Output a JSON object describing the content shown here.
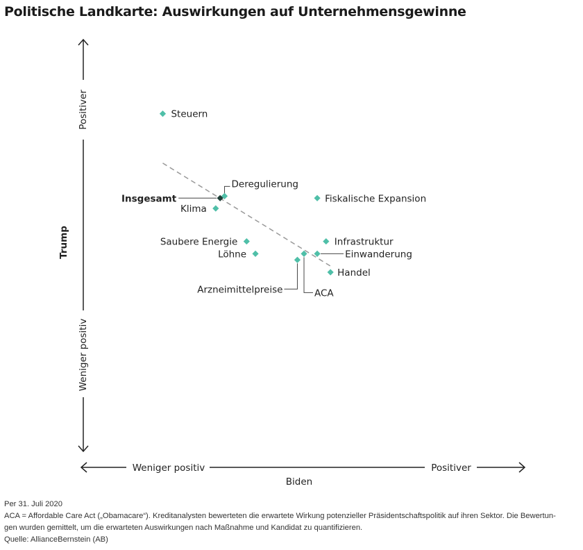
{
  "title": "Politische Landkarte: Auswirkungen auf Unternehmensgewinne",
  "notes": {
    "date": "Per 31. Juli 2020",
    "line1": "ACA = Affordable Care Act („Obamacare“). Kreditanalysten bewerteten die erwartete Wirkung potenzieller Präsidentschaftspolitik auf ihren Sektor. Die Bewertun-",
    "line2": "gen wurden gemittelt, um die erwarteten Auswirkungen nach Maßnahme und Kandidat zu quantifizieren.",
    "source": "Quelle: AllianceBernstein (AB)"
  },
  "colors": {
    "point": "#4fbfa8",
    "overall": "#1f3f38",
    "trend": "#999999",
    "axis": "#222222"
  },
  "chart_data": {
    "type": "scatter",
    "xlabel": "Biden",
    "ylabel": "Trump",
    "x_axis_ends": {
      "low": "Weniger positiv",
      "high": "Positiver"
    },
    "y_axis_ends": {
      "low": "Weniger positiv",
      "high": "Positiver"
    },
    "xlim": [
      0,
      1
    ],
    "ylim": [
      0,
      1
    ],
    "grid": false,
    "trendline": [
      [
        0.18,
        0.7
      ],
      [
        0.56,
        0.45
      ]
    ],
    "points": [
      {
        "name": "Steuern",
        "x": 0.18,
        "y": 0.82
      },
      {
        "name": "Deregulierung",
        "x": 0.32,
        "y": 0.62
      },
      {
        "name": "Insgesamt",
        "x": 0.31,
        "y": 0.615,
        "highlight": true
      },
      {
        "name": "Fiskalische Expansion",
        "x": 0.53,
        "y": 0.615
      },
      {
        "name": "Klima",
        "x": 0.3,
        "y": 0.59
      },
      {
        "name": "Saubere Energie",
        "x": 0.37,
        "y": 0.51
      },
      {
        "name": "Infrastruktur",
        "x": 0.55,
        "y": 0.51
      },
      {
        "name": "Löhne",
        "x": 0.39,
        "y": 0.48
      },
      {
        "name": "Einwanderung",
        "x": 0.53,
        "y": 0.48
      },
      {
        "name": "ACA",
        "x": 0.5,
        "y": 0.48
      },
      {
        "name": "Arzneimittelpreise",
        "x": 0.485,
        "y": 0.465
      },
      {
        "name": "Handel",
        "x": 0.56,
        "y": 0.435
      }
    ]
  }
}
